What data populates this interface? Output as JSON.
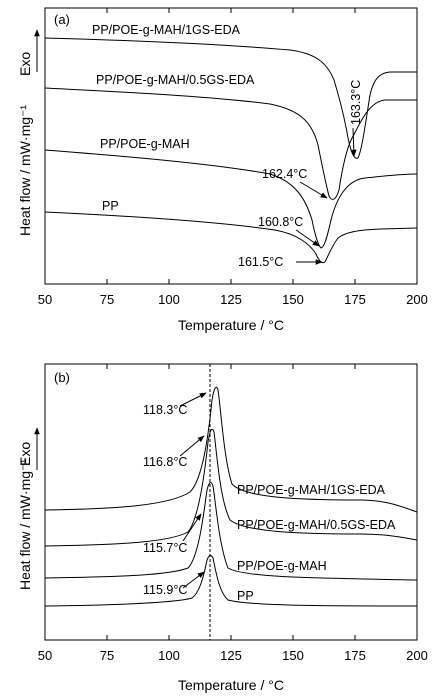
{
  "chart_data": [
    {
      "panel_label": "(a)",
      "type": "line",
      "xlabel": "Temperature / °C",
      "ylabel": "Heat flow / mW·mg⁻¹",
      "y_direction_label": "Exo",
      "xlim": [
        50,
        200
      ],
      "xticks": [
        50,
        75,
        100,
        125,
        150,
        175,
        200
      ],
      "y_tick_labels": false,
      "series": [
        {
          "name": "PP/POE-g-MAH/1GS-EDA",
          "peak_label": "163.3°C"
        },
        {
          "name": "PP/POE-g-MAH/0.5GS-EDA",
          "peak_label": "162.4°C"
        },
        {
          "name": "PP/POE-g-MAH",
          "peak_label": "160.8°C"
        },
        {
          "name": "PP",
          "peak_label": "161.5°C"
        }
      ]
    },
    {
      "panel_label": "(b)",
      "type": "line",
      "xlabel": "Temperature / °C",
      "ylabel": "Heat flow / mW·mg⁻¹",
      "y_direction_label": "Exo",
      "xlim": [
        50,
        200
      ],
      "xticks": [
        50,
        75,
        100,
        125,
        150,
        175,
        200
      ],
      "y_tick_labels": false,
      "series": [
        {
          "name": "PP/POE-g-MAH/1GS-EDA",
          "peak_label": "118.3°C"
        },
        {
          "name": "PP/POE-g-MAH/0.5GS-EDA",
          "peak_label": "116.8°C"
        },
        {
          "name": "PP/POE-g-MAH",
          "peak_label": "115.7°C"
        },
        {
          "name": "PP",
          "peak_label": "115.9°C"
        }
      ]
    }
  ]
}
